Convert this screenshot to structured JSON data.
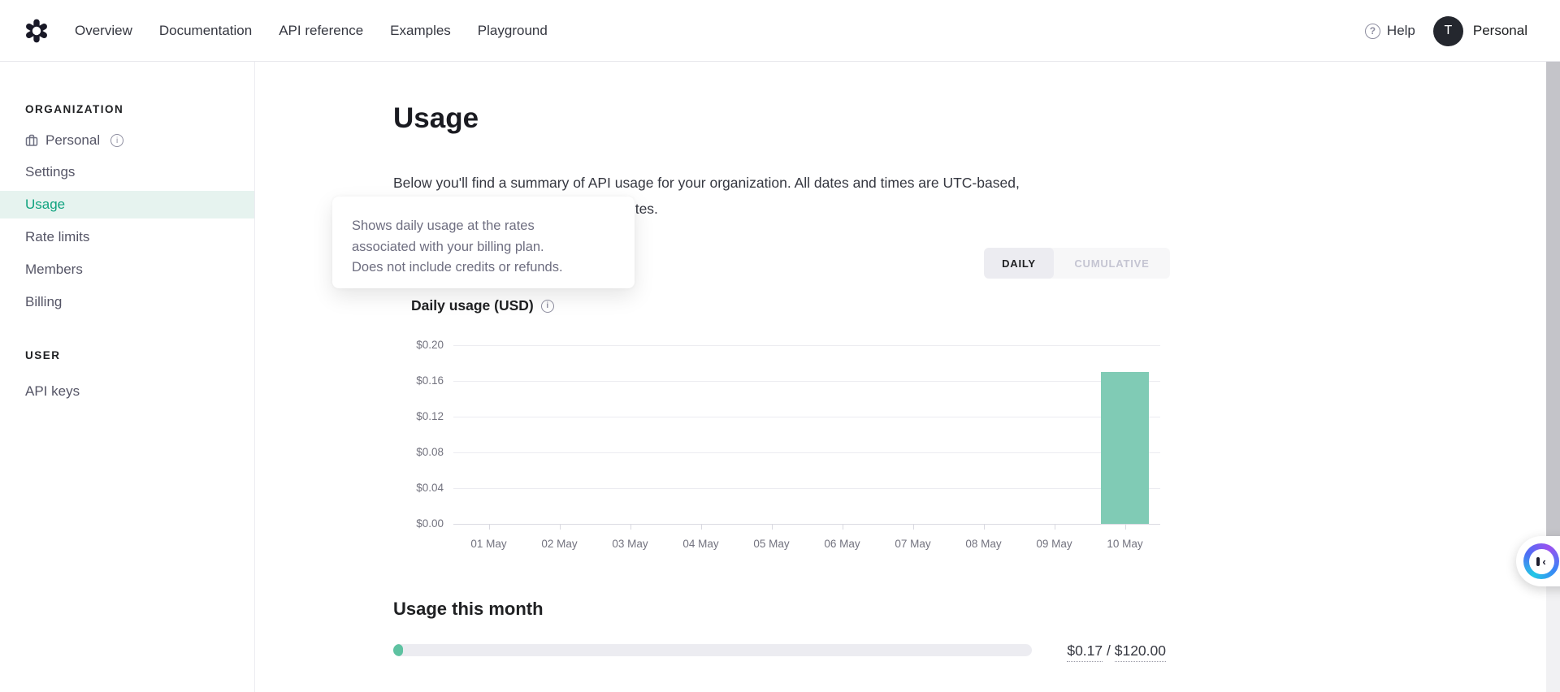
{
  "header": {
    "nav": [
      "Overview",
      "Documentation",
      "API reference",
      "Examples",
      "Playground"
    ],
    "help_label": "Help",
    "help_icon_glyph": "?",
    "avatar_initial": "T",
    "account_label": "Personal"
  },
  "sidebar": {
    "org": {
      "title": "ORGANIZATION",
      "items": [
        "Personal",
        "Settings",
        "Usage",
        "Rate limits",
        "Members",
        "Billing"
      ],
      "selected_item": "Usage"
    },
    "user": {
      "title": "USER",
      "items": [
        "API keys"
      ]
    }
  },
  "main": {
    "title": "Usage",
    "description_line1": "Below you'll find a summary of API usage for your organization. All dates and times are UTC-based,",
    "description_line2": "and data may be delayed up to 5 minutes.",
    "tooltip_lines": [
      "Shows daily usage at the rates",
      "associated with your billing plan.",
      "Does not include credits or refunds."
    ],
    "toggle": {
      "options": [
        "DAILY",
        "CUMULATIVE"
      ],
      "selected": "DAILY"
    },
    "usage_month": {
      "title": "Usage this month",
      "used_display": "$0.17",
      "separator": " / ",
      "limit_display": "$120.00",
      "used_value": 0.17,
      "limit_value": 120
    }
  },
  "chart_data": {
    "type": "bar",
    "title": "Daily usage (USD)",
    "categories": [
      "01 May",
      "02 May",
      "03 May",
      "04 May",
      "05 May",
      "06 May",
      "07 May",
      "08 May",
      "09 May",
      "10 May"
    ],
    "values": [
      0,
      0,
      0,
      0,
      0,
      0,
      0,
      0,
      0,
      0.17
    ],
    "ylim": [
      0,
      0.2
    ],
    "y_ticks_top_down": [
      "$0.20",
      "$0.16",
      "$0.12",
      "$0.08",
      "$0.04",
      "$0.00"
    ],
    "xlabel": "",
    "ylabel": "Daily usage (USD)",
    "grid": true,
    "legend": false,
    "bar_color": "#80cbb5"
  },
  "colors": {
    "accent_green": "#10a37f",
    "bar_teal": "#80cbb5",
    "progress_teal": "#5ec2a1",
    "selected_bg": "#e6f3ef",
    "muted_text": "#6e6e80"
  }
}
